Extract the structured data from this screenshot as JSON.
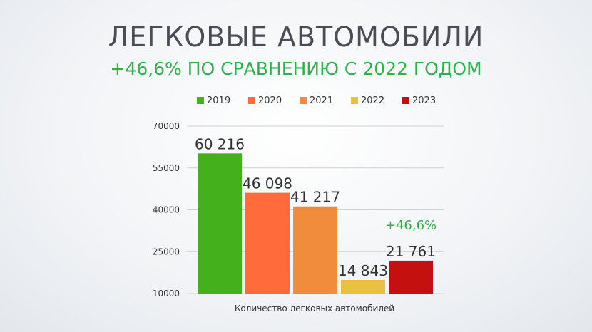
{
  "slide": {
    "title": "ЛЕГКОВЫЕ АВТОМОБИЛИ",
    "subtitle": "+46,6% ПО СРАВНЕНИЮ С 2022 ГОДОМ"
  },
  "chart_data": {
    "type": "bar",
    "title": "",
    "xlabel": "Количество легковых автомобилей",
    "ylabel": "",
    "ylim": [
      10000,
      70000
    ],
    "yticks": [
      10000,
      25000,
      40000,
      55000,
      70000
    ],
    "grid": true,
    "legend_position": "top",
    "categories": [
      "Количество легковых автомобилей"
    ],
    "series": [
      {
        "name": "2019",
        "values": [
          60216
        ],
        "label": "60 216",
        "color": "#43b01c"
      },
      {
        "name": "2020",
        "values": [
          46098
        ],
        "label": "46 098",
        "color": "#ff6b3a"
      },
      {
        "name": "2021",
        "values": [
          41217
        ],
        "label": "41 217",
        "color": "#f08c3c"
      },
      {
        "name": "2022",
        "values": [
          14843
        ],
        "label": "14 843",
        "color": "#e8c140"
      },
      {
        "name": "2023",
        "values": [
          21761
        ],
        "label": "21 761",
        "color": "#c4100f"
      }
    ],
    "annotations": [
      {
        "text": "+46,6%",
        "series": "2023",
        "color": "#2db34a"
      }
    ]
  }
}
